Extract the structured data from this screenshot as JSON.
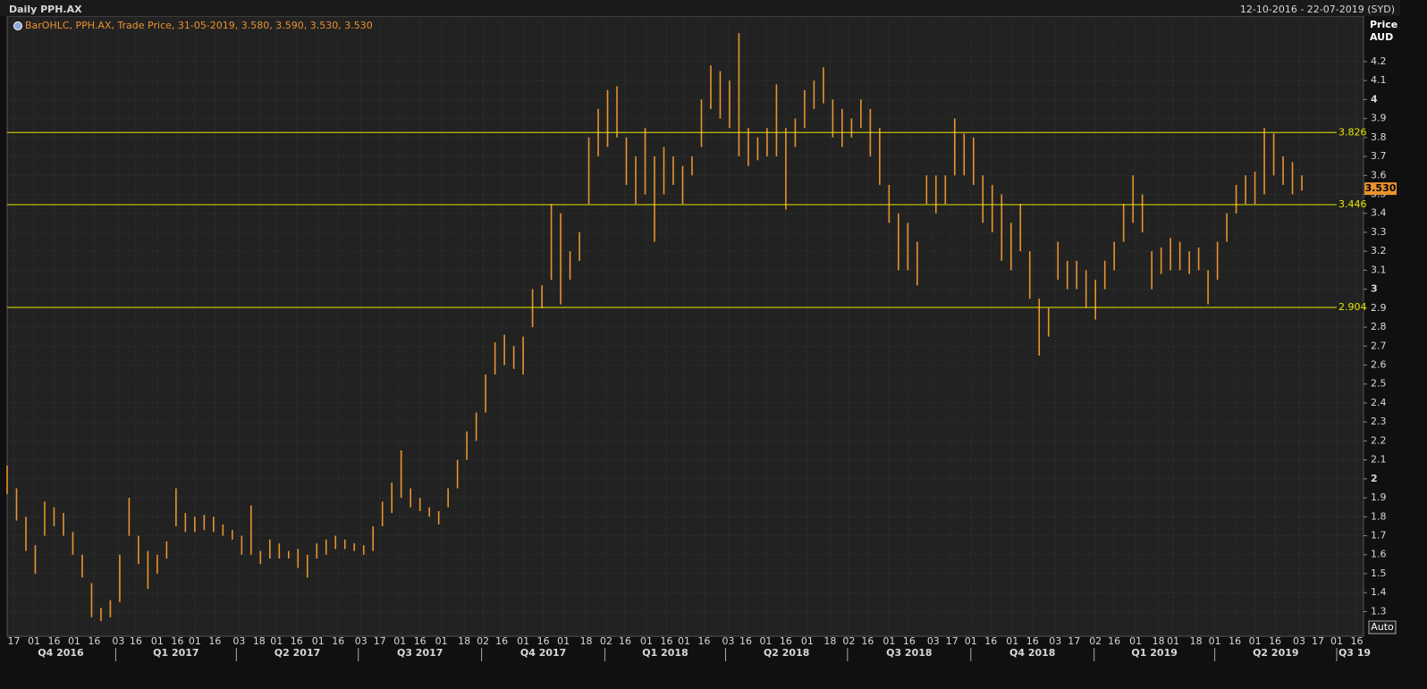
{
  "header": {
    "title": "Daily PPH.AX",
    "range": "12-10-2016 - 22-07-2019 (SYD)"
  },
  "chart_data": {
    "type": "ohlc",
    "legend": "BarOHLC, PPH.AX, Trade Price, 31-05-2019, 3.580, 3.590, 3.530, 3.530",
    "y_label": "Price",
    "y_unit": "AUD",
    "x": [
      0,
      7,
      14,
      21,
      28,
      35,
      42,
      49,
      56,
      63,
      70,
      77,
      84,
      91,
      98,
      105,
      112,
      119,
      126,
      133,
      140,
      147,
      154,
      161,
      168,
      175,
      182,
      189,
      196,
      203,
      210,
      217,
      224,
      231,
      238,
      245,
      252,
      259,
      266,
      273,
      280,
      287,
      294,
      301,
      308,
      315,
      322,
      329,
      336,
      343,
      350,
      357,
      364,
      371,
      378,
      385,
      392,
      399,
      406,
      413,
      420,
      427,
      434,
      441,
      448,
      455,
      462,
      469,
      476,
      483,
      490,
      497,
      504,
      511,
      518,
      525,
      532,
      539,
      546,
      553,
      560,
      567,
      574,
      581,
      588,
      595,
      602,
      609,
      616,
      623,
      630,
      637,
      644,
      651,
      658,
      665,
      672,
      679,
      686,
      693,
      700,
      707,
      714,
      721,
      728,
      735,
      742,
      749,
      756,
      763,
      770,
      777,
      784,
      791,
      798,
      805,
      812,
      819,
      826,
      833,
      840,
      847,
      854,
      861,
      868,
      875,
      882,
      889,
      896,
      903,
      910,
      917,
      924,
      931,
      938,
      945,
      952,
      959,
      966
    ],
    "series": [
      {
        "color": "#e8932e",
        "high": [
          2.07,
          1.95,
          1.8,
          1.65,
          1.88,
          1.85,
          1.82,
          1.72,
          1.6,
          1.45,
          1.32,
          1.36,
          1.6,
          1.9,
          1.7,
          1.62,
          1.6,
          1.67,
          1.95,
          1.82,
          1.8,
          1.81,
          1.8,
          1.76,
          1.73,
          1.7,
          1.86,
          1.62,
          1.68,
          1.66,
          1.62,
          1.63,
          1.6,
          1.66,
          1.68,
          1.7,
          1.68,
          1.66,
          1.65,
          1.75,
          1.88,
          1.98,
          2.15,
          1.95,
          1.9,
          1.85,
          1.83,
          1.95,
          2.1,
          2.25,
          2.35,
          2.55,
          2.72,
          2.76,
          2.7,
          2.75,
          3.0,
          3.02,
          3.45,
          3.4,
          3.2,
          3.3,
          3.8,
          3.95,
          4.05,
          4.07,
          3.8,
          3.7,
          3.85,
          3.7,
          3.75,
          3.7,
          3.65,
          3.7,
          4.0,
          4.18,
          4.15,
          4.1,
          4.35,
          3.85,
          3.8,
          3.85,
          4.08,
          3.85,
          3.9,
          4.05,
          4.1,
          4.17,
          4.0,
          3.95,
          3.9,
          4.0,
          3.95,
          3.85,
          3.55,
          3.4,
          3.35,
          3.25,
          3.6,
          3.6,
          3.6,
          3.9,
          3.82,
          3.8,
          3.6,
          3.55,
          3.5,
          3.35,
          3.45,
          3.2,
          2.95,
          2.9,
          3.25,
          3.15,
          3.15,
          3.1,
          3.05,
          3.15,
          3.25,
          3.45,
          3.6,
          3.5,
          3.2,
          3.22,
          3.27,
          3.25,
          3.2,
          3.22,
          3.1,
          3.25,
          3.4,
          3.55,
          3.6,
          3.62,
          3.85,
          3.82,
          3.7,
          3.67,
          3.6
        ],
        "low": [
          1.92,
          1.78,
          1.62,
          1.5,
          1.7,
          1.75,
          1.7,
          1.6,
          1.48,
          1.27,
          1.25,
          1.27,
          1.35,
          1.7,
          1.55,
          1.42,
          1.5,
          1.58,
          1.75,
          1.72,
          1.72,
          1.73,
          1.72,
          1.7,
          1.68,
          1.6,
          1.6,
          1.55,
          1.58,
          1.58,
          1.58,
          1.53,
          1.48,
          1.58,
          1.6,
          1.63,
          1.63,
          1.62,
          1.6,
          1.62,
          1.75,
          1.82,
          1.9,
          1.85,
          1.83,
          1.8,
          1.76,
          1.85,
          1.95,
          2.1,
          2.2,
          2.35,
          2.55,
          2.6,
          2.58,
          2.55,
          2.8,
          2.9,
          3.05,
          2.92,
          3.05,
          3.15,
          3.45,
          3.7,
          3.75,
          3.8,
          3.55,
          3.45,
          3.5,
          3.25,
          3.5,
          3.55,
          3.45,
          3.6,
          3.75,
          3.95,
          3.9,
          3.85,
          3.7,
          3.65,
          3.68,
          3.7,
          3.7,
          3.42,
          3.75,
          3.85,
          3.95,
          3.98,
          3.8,
          3.75,
          3.8,
          3.85,
          3.7,
          3.55,
          3.35,
          3.1,
          3.1,
          3.02,
          3.45,
          3.4,
          3.45,
          3.6,
          3.6,
          3.55,
          3.35,
          3.3,
          3.15,
          3.1,
          3.2,
          2.95,
          2.65,
          2.75,
          3.05,
          3.0,
          3.0,
          2.9,
          2.84,
          3.0,
          3.1,
          3.25,
          3.35,
          3.3,
          3.0,
          3.08,
          3.1,
          3.1,
          3.08,
          3.1,
          2.92,
          3.05,
          3.25,
          3.4,
          3.45,
          3.45,
          3.5,
          3.6,
          3.55,
          3.5,
          3.52
        ]
      }
    ],
    "xlim": [
      0,
      1012
    ],
    "ylim": [
      1.17,
      4.44
    ],
    "yticks": [
      1.3,
      1.4,
      1.5,
      1.6,
      1.7,
      1.8,
      1.9,
      2,
      2.1,
      2.2,
      2.3,
      2.4,
      2.5,
      2.6,
      2.7,
      2.8,
      2.9,
      3,
      3.1,
      3.2,
      3.3,
      3.4,
      3.5,
      3.6,
      3.7,
      3.8,
      3.9,
      4,
      4.1,
      4.2
    ],
    "xticks": [
      {
        "value": 5,
        "label": "17"
      },
      {
        "value": 20,
        "label": "01"
      },
      {
        "value": 35,
        "label": "16"
      },
      {
        "value": 50,
        "label": "01"
      },
      {
        "value": 65,
        "label": "16"
      },
      {
        "value": 83,
        "label": "03"
      },
      {
        "value": 96,
        "label": "16"
      },
      {
        "value": 112,
        "label": "01"
      },
      {
        "value": 127,
        "label": "16"
      },
      {
        "value": 140,
        "label": "01"
      },
      {
        "value": 155,
        "label": "16"
      },
      {
        "value": 173,
        "label": "03"
      },
      {
        "value": 188,
        "label": "18"
      },
      {
        "value": 201,
        "label": "01"
      },
      {
        "value": 216,
        "label": "16"
      },
      {
        "value": 232,
        "label": "01"
      },
      {
        "value": 247,
        "label": "16"
      },
      {
        "value": 264,
        "label": "03"
      },
      {
        "value": 278,
        "label": "17"
      },
      {
        "value": 293,
        "label": "01"
      },
      {
        "value": 308,
        "label": "16"
      },
      {
        "value": 324,
        "label": "01"
      },
      {
        "value": 341,
        "label": "18"
      },
      {
        "value": 355,
        "label": "02"
      },
      {
        "value": 369,
        "label": "16"
      },
      {
        "value": 385,
        "label": "01"
      },
      {
        "value": 400,
        "label": "16"
      },
      {
        "value": 415,
        "label": "01"
      },
      {
        "value": 432,
        "label": "18"
      },
      {
        "value": 447,
        "label": "02"
      },
      {
        "value": 461,
        "label": "16"
      },
      {
        "value": 477,
        "label": "01"
      },
      {
        "value": 492,
        "label": "16"
      },
      {
        "value": 505,
        "label": "01"
      },
      {
        "value": 520,
        "label": "16"
      },
      {
        "value": 538,
        "label": "03"
      },
      {
        "value": 551,
        "label": "16"
      },
      {
        "value": 566,
        "label": "01"
      },
      {
        "value": 581,
        "label": "16"
      },
      {
        "value": 597,
        "label": "01"
      },
      {
        "value": 614,
        "label": "18"
      },
      {
        "value": 628,
        "label": "02"
      },
      {
        "value": 642,
        "label": "16"
      },
      {
        "value": 658,
        "label": "01"
      },
      {
        "value": 673,
        "label": "16"
      },
      {
        "value": 691,
        "label": "03"
      },
      {
        "value": 705,
        "label": "17"
      },
      {
        "value": 719,
        "label": "01"
      },
      {
        "value": 734,
        "label": "16"
      },
      {
        "value": 750,
        "label": "01"
      },
      {
        "value": 765,
        "label": "16"
      },
      {
        "value": 782,
        "label": "03"
      },
      {
        "value": 796,
        "label": "17"
      },
      {
        "value": 812,
        "label": "02"
      },
      {
        "value": 826,
        "label": "16"
      },
      {
        "value": 842,
        "label": "01"
      },
      {
        "value": 859,
        "label": "18"
      },
      {
        "value": 870,
        "label": "01"
      },
      {
        "value": 887,
        "label": "18"
      },
      {
        "value": 901,
        "label": "01"
      },
      {
        "value": 916,
        "label": "16"
      },
      {
        "value": 931,
        "label": "01"
      },
      {
        "value": 946,
        "label": "16"
      },
      {
        "value": 964,
        "label": "03"
      },
      {
        "value": 978,
        "label": "17"
      },
      {
        "value": 992,
        "label": "01"
      },
      {
        "value": 1007,
        "label": "16"
      }
    ],
    "quarters": [
      {
        "value": -11,
        "label": "Q4 2016"
      },
      {
        "value": 81,
        "label": "Q1 2017"
      },
      {
        "value": 171,
        "label": "Q2 2017"
      },
      {
        "value": 262,
        "label": "Q3 2017"
      },
      {
        "value": 354,
        "label": "Q4 2017"
      },
      {
        "value": 446,
        "label": "Q1 2018"
      },
      {
        "value": 536,
        "label": "Q2 2018"
      },
      {
        "value": 627,
        "label": "Q3 2018"
      },
      {
        "value": 719,
        "label": "Q4 2018"
      },
      {
        "value": 811,
        "label": "Q1 2019"
      },
      {
        "value": 901,
        "label": "Q2 2019"
      },
      {
        "value": 992,
        "label": "Q3 19"
      }
    ],
    "levels": [
      3.826,
      3.446,
      2.904
    ],
    "level_color": "#e6e600",
    "last": {
      "value": 3.53,
      "label": "3.530"
    },
    "grid": true
  },
  "controls": {
    "auto": "Auto"
  }
}
